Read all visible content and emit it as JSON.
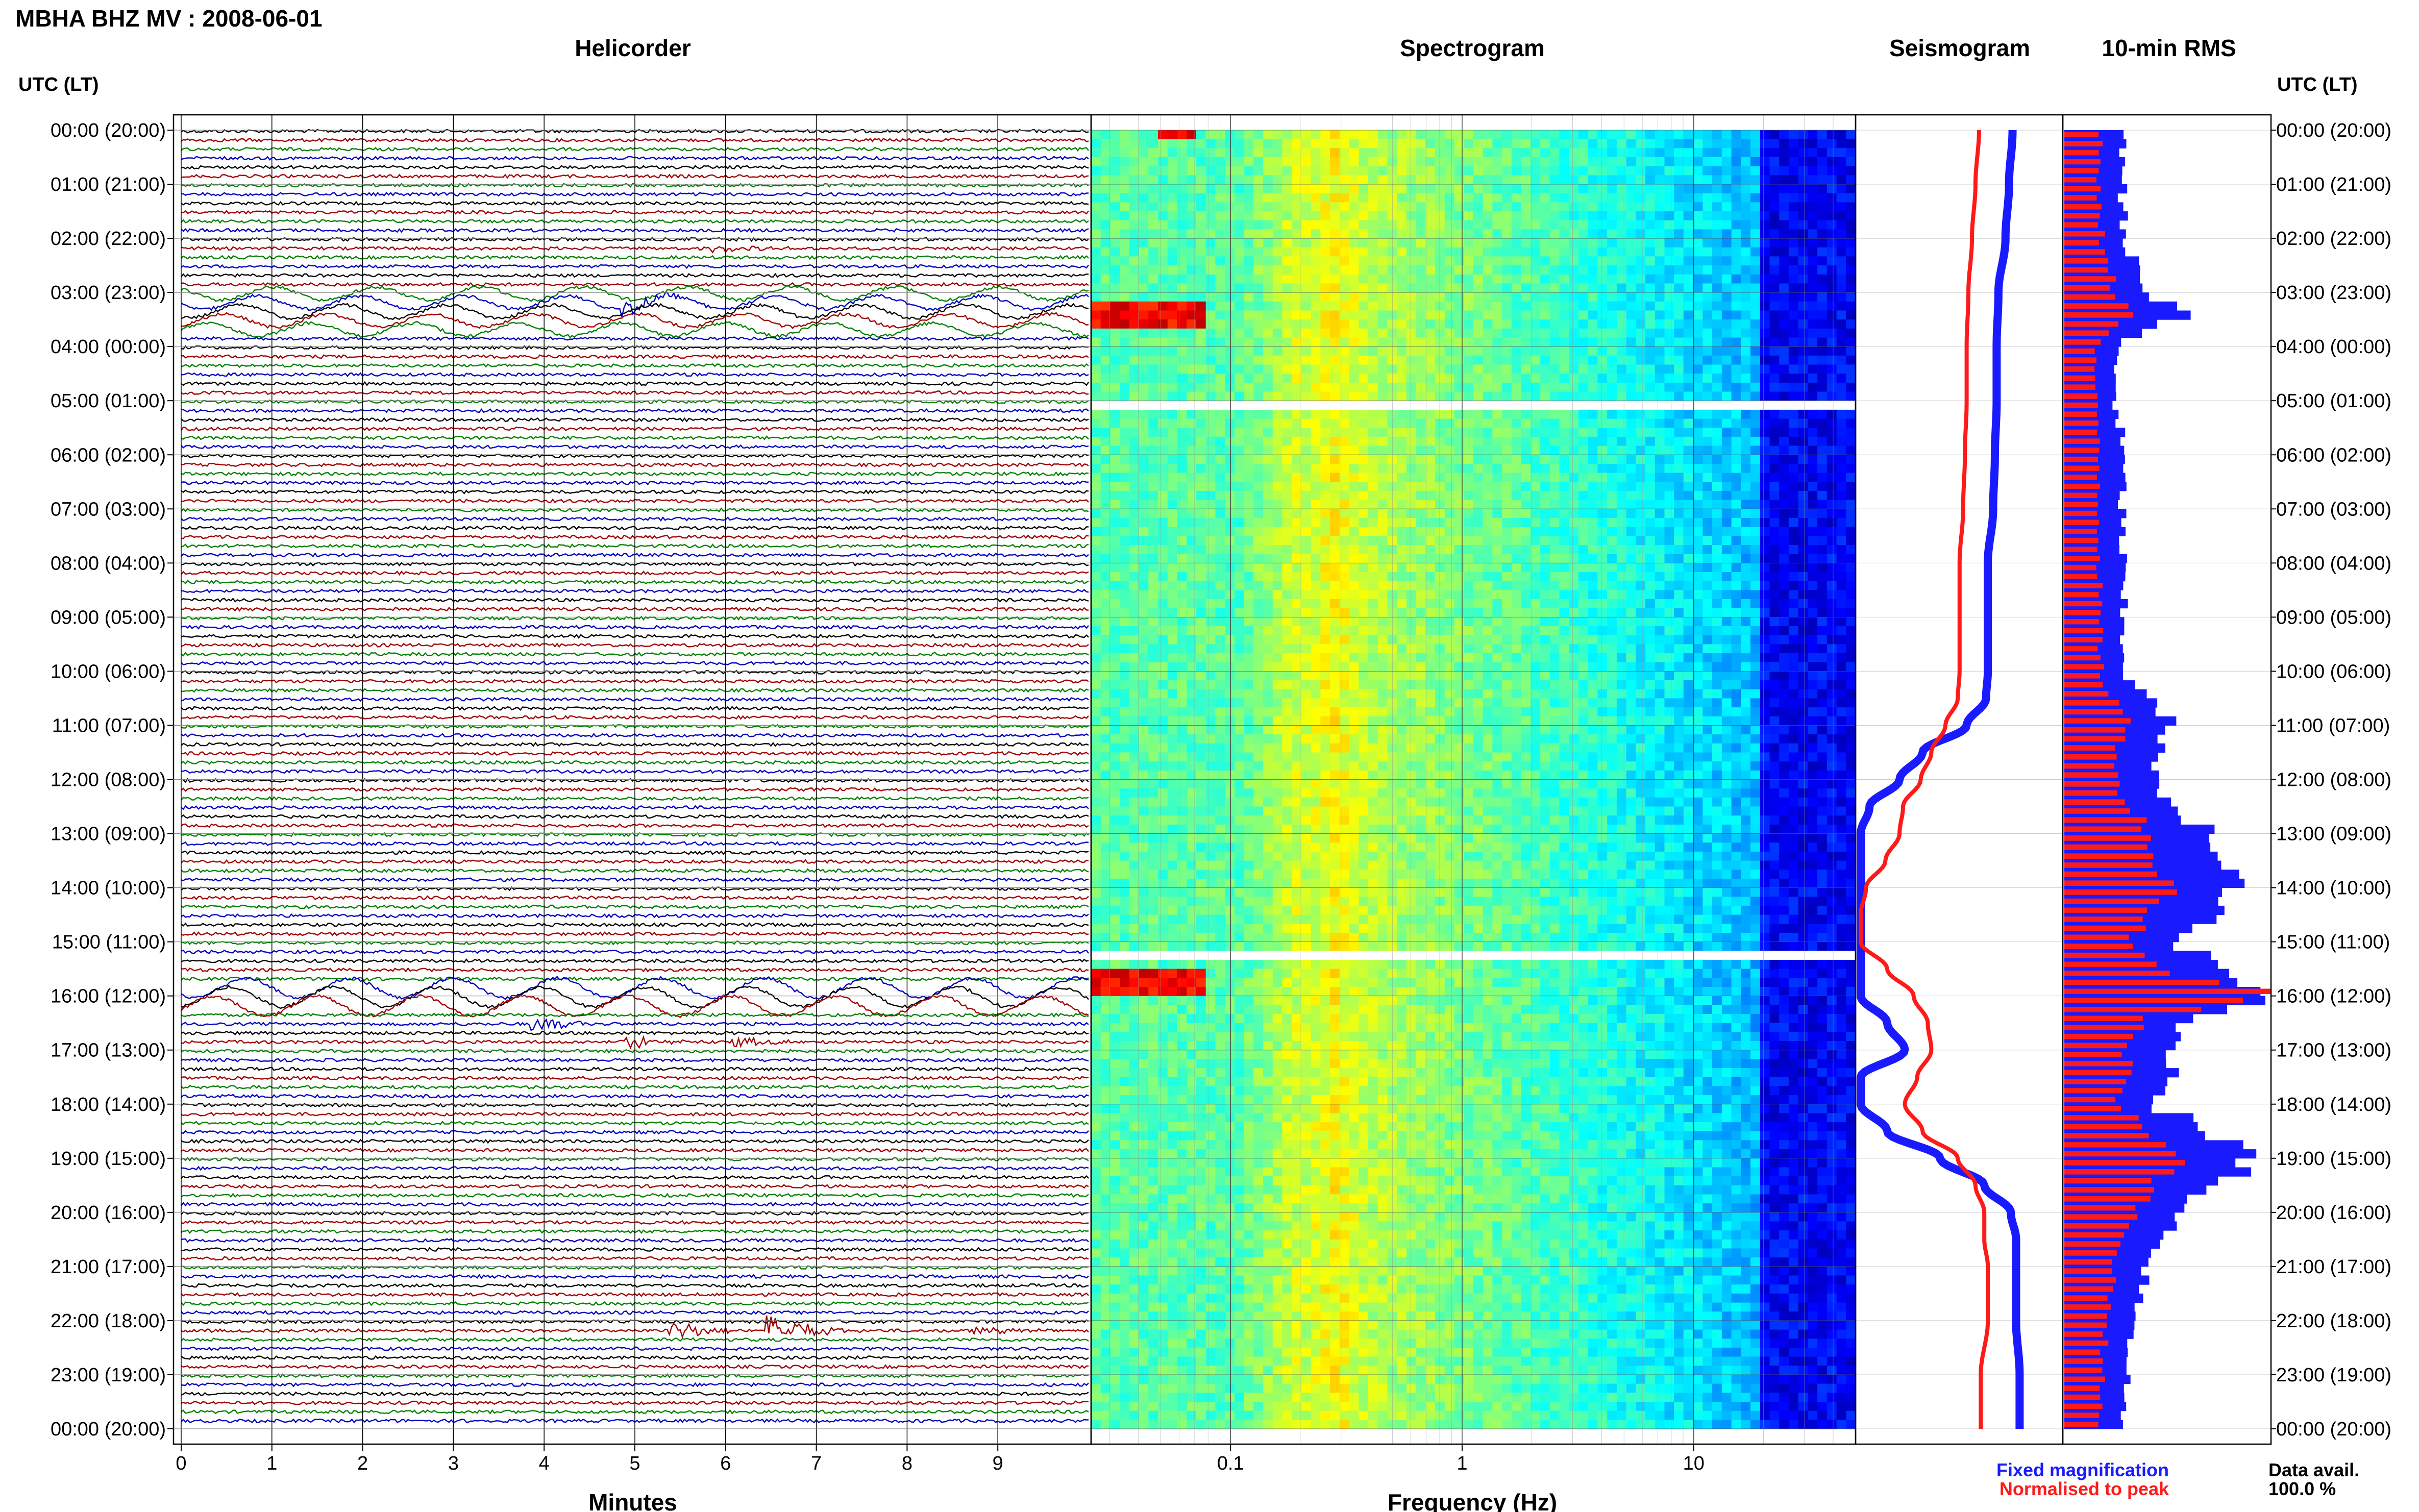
{
  "title": "MBHA BHZ MV : 2008-06-01",
  "panels": {
    "helicorder": "Helicorder",
    "spectrogram": "Spectrogram",
    "seismogram": "Seismogram",
    "rms": "10-min RMS"
  },
  "time_axis": {
    "label_left": "UTC (LT)",
    "label_right": "UTC (LT)",
    "ticks": [
      "00:00 (20:00)",
      "01:00 (21:00)",
      "02:00 (22:00)",
      "03:00 (23:00)",
      "04:00 (00:00)",
      "05:00 (01:00)",
      "06:00 (02:00)",
      "07:00 (03:00)",
      "08:00 (04:00)",
      "09:00 (05:00)",
      "10:00 (06:00)",
      "11:00 (07:00)",
      "12:00 (08:00)",
      "13:00 (09:00)",
      "14:00 (10:00)",
      "15:00 (11:00)",
      "16:00 (12:00)",
      "17:00 (13:00)",
      "18:00 (14:00)",
      "19:00 (15:00)",
      "20:00 (16:00)",
      "21:00 (17:00)",
      "22:00 (18:00)",
      "23:00 (19:00)",
      "00:00 (20:00)"
    ]
  },
  "helicorder_axis": {
    "label": "Minutes",
    "ticks": [
      "0",
      "1",
      "2",
      "3",
      "4",
      "5",
      "6",
      "7",
      "8",
      "9"
    ]
  },
  "spectrogram_axis": {
    "label": "Frequency (Hz)",
    "ticks": [
      "0.1",
      "1",
      "10"
    ]
  },
  "legend": {
    "fixed": "Fixed magnification",
    "normalised": "Normalised to peak",
    "fixed_color": "#1a1aff",
    "normalised_color": "#ff1a1a"
  },
  "availability": {
    "label": "Data avail.",
    "value": "100.0 %"
  },
  "chart_data": [
    {
      "type": "line",
      "panel": "helicorder",
      "title": "Helicorder",
      "xlabel": "Minutes",
      "xlim": [
        0,
        10
      ],
      "ylim": [
        0,
        24
      ],
      "trace_colors": [
        "#000000",
        "#a00000",
        "#008000",
        "#0000c0"
      ],
      "events": [
        {
          "hour": 2.15,
          "minute": 6.0,
          "color": "#a00000",
          "amp": 0.3
        },
        {
          "hour": 3.2,
          "minute": 5.0,
          "color": "#000000",
          "amp": 0.6
        },
        {
          "hour": 16.5,
          "minute": 4.0,
          "color": "#008000",
          "amp": 0.6
        },
        {
          "hour": 16.83,
          "minute": 5.0,
          "color": "#0000c0",
          "amp": 0.5
        },
        {
          "hour": 16.83,
          "minute": 6.2,
          "color": "#a00000",
          "amp": 0.4
        },
        {
          "hour": 22.17,
          "minute": 5.5,
          "color": "#0000c0",
          "amp": 0.8
        },
        {
          "hour": 22.17,
          "minute": 6.6,
          "color": "#0000c0",
          "amp": 1.4
        },
        {
          "hour": 22.15,
          "minute": 8.8,
          "color": "#a00000",
          "amp": 0.4
        }
      ],
      "microseism_bands": [
        {
          "from_hour": 3.0,
          "to_hour": 3.8,
          "amp": 0.6
        },
        {
          "from_hour": 15.8,
          "to_hour": 16.3,
          "amp": 0.9
        }
      ]
    },
    {
      "type": "heatmap",
      "panel": "spectrogram",
      "title": "Spectrogram",
      "xlabel": "Frequency (Hz)",
      "xscale": "log",
      "xlim": [
        0.025,
        50
      ],
      "ylim": [
        0,
        24
      ],
      "gaps_hour": [
        5.1,
        15.3
      ],
      "hotspots": [
        {
          "from_hour": 3.25,
          "to_hour": 3.7,
          "f_from": 0.025,
          "f_to": 0.075
        },
        {
          "from_hour": 15.5,
          "to_hour": 16.0,
          "f_from": 0.025,
          "f_to": 0.075
        },
        {
          "from_hour": 0.0,
          "to_hour": 0.1,
          "f_from": 0.05,
          "f_to": 0.07
        }
      ]
    },
    {
      "type": "line",
      "panel": "seismogram",
      "title": "Seismogram",
      "ylim": [
        0,
        24
      ],
      "xlim": [
        0,
        1
      ],
      "series": [
        {
          "name": "Fixed magnification",
          "color": "#1a1aff",
          "hours": [
            0,
            1,
            2,
            3,
            4,
            5,
            6,
            7,
            8,
            9,
            10,
            10.5,
            11,
            11.5,
            12,
            12.5,
            13,
            13.5,
            14,
            14.5,
            15,
            15.5,
            16,
            16.5,
            17,
            17.5,
            18,
            18.5,
            19,
            19.5,
            20,
            20.5,
            21,
            22,
            23,
            24
          ],
          "values": [
            0.86,
            0.84,
            0.82,
            0.78,
            0.77,
            0.77,
            0.76,
            0.75,
            0.72,
            0.72,
            0.72,
            0.71,
            0.6,
            0.35,
            0.22,
            0.05,
            0.0,
            0.0,
            0.0,
            0.0,
            0.0,
            0.0,
            0.0,
            0.15,
            0.25,
            0.0,
            0.0,
            0.15,
            0.45,
            0.7,
            0.85,
            0.88,
            0.88,
            0.88,
            0.9,
            0.9
          ]
        },
        {
          "name": "Normalised to peak",
          "color": "#ff1a1a",
          "hours": [
            0,
            1,
            2,
            3,
            4,
            5,
            6,
            7,
            8,
            9,
            10,
            10.5,
            11,
            11.5,
            12,
            12.5,
            13,
            13.5,
            14,
            14.5,
            15,
            15.5,
            16,
            16.5,
            17,
            17.5,
            18,
            18.5,
            19,
            19.5,
            20,
            20.5,
            21,
            22,
            23,
            24
          ],
          "values": [
            0.67,
            0.65,
            0.63,
            0.61,
            0.6,
            0.6,
            0.59,
            0.58,
            0.56,
            0.56,
            0.56,
            0.55,
            0.48,
            0.4,
            0.34,
            0.24,
            0.22,
            0.14,
            0.03,
            0.0,
            0.0,
            0.15,
            0.3,
            0.38,
            0.4,
            0.32,
            0.25,
            0.35,
            0.55,
            0.65,
            0.7,
            0.7,
            0.72,
            0.72,
            0.68,
            0.68
          ]
        }
      ]
    },
    {
      "type": "bar",
      "panel": "rms",
      "title": "10-min RMS",
      "orientation": "horizontal",
      "bin_hours": 0.1667,
      "ylim": [
        0,
        24
      ],
      "xlim": [
        0,
        1
      ],
      "series": [
        {
          "name": "Fixed magnification",
          "color": "#1a1aff",
          "hours": [
            0,
            1,
            2,
            3,
            3.33,
            3.67,
            4,
            5,
            6,
            7,
            8,
            9,
            10,
            11,
            11.5,
            12,
            12.5,
            13,
            13.5,
            14,
            14.5,
            15,
            15.5,
            16,
            16.5,
            17,
            17.5,
            18,
            18.5,
            19,
            19.5,
            20,
            20.5,
            21,
            22,
            23,
            24
          ],
          "values": [
            0.3,
            0.28,
            0.3,
            0.38,
            0.6,
            0.4,
            0.25,
            0.25,
            0.28,
            0.28,
            0.28,
            0.28,
            0.3,
            0.5,
            0.45,
            0.42,
            0.55,
            0.7,
            0.72,
            0.85,
            0.7,
            0.55,
            0.75,
            0.95,
            0.6,
            0.5,
            0.55,
            0.45,
            0.7,
            0.9,
            0.75,
            0.55,
            0.5,
            0.4,
            0.35,
            0.3,
            0.28
          ]
        },
        {
          "name": "Normalised to peak",
          "color": "#ff1a1a",
          "hours": [
            0,
            1,
            2,
            3,
            3.33,
            3.67,
            4,
            5,
            6,
            7,
            8,
            9,
            10,
            11,
            11.5,
            12,
            12.5,
            13,
            13.5,
            14,
            14.5,
            15,
            15.5,
            16,
            16.5,
            17,
            17.5,
            18,
            18.5,
            19,
            19.5,
            20,
            20.5,
            21,
            22,
            23,
            24
          ],
          "values": [
            0.18,
            0.16,
            0.18,
            0.24,
            0.35,
            0.25,
            0.15,
            0.15,
            0.17,
            0.17,
            0.17,
            0.17,
            0.18,
            0.3,
            0.27,
            0.25,
            0.32,
            0.42,
            0.43,
            0.52,
            0.42,
            0.33,
            0.45,
            0.98,
            0.36,
            0.3,
            0.33,
            0.27,
            0.42,
            0.55,
            0.45,
            0.33,
            0.3,
            0.24,
            0.21,
            0.18,
            0.17
          ]
        }
      ]
    }
  ]
}
